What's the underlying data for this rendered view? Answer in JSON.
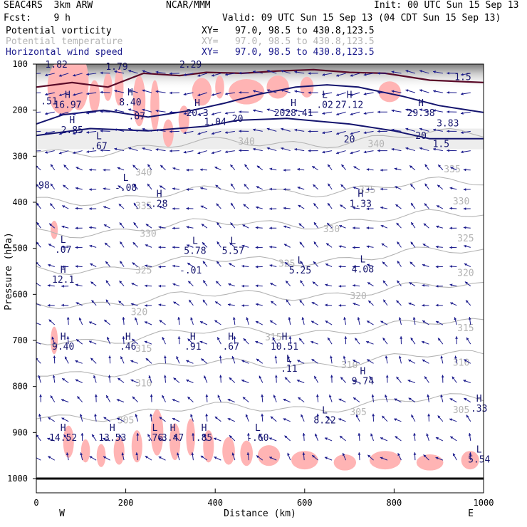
{
  "header": {
    "line1_left": "SEAC4RS  3km ARW",
    "line1_center": "NCAR/MMM",
    "line1_right": "Init: 00 UTC Sun 15 Sep 13",
    "line2_left": "Fcst:    9 h",
    "line2_right": "Valid: 09 UTC Sun 15 Sep 13 (04 CDT Sun 15 Sep 13)",
    "fields": [
      {
        "name": "Potential vorticity",
        "xy": "XY=   97.0, 98.5 to 430.8,123.5",
        "color": "#000000"
      },
      {
        "name": "Potential temperature",
        "xy": "XY=   97.0, 98.5 to 430.8,123.5",
        "color": "#b4b4b4"
      },
      {
        "name": "Horizontal wind speed",
        "xy": "XY=   97.0, 98.5 to 430.8,123.5",
        "color": "#1a1a8c"
      }
    ]
  },
  "chart_data": {
    "type": "cross-section",
    "xlabel": "Distance (km)",
    "ylabel": "Pressure (hPa)",
    "xlim": [
      0,
      1000
    ],
    "ylim": [
      1000,
      100
    ],
    "x_ticks": [
      "0",
      "200",
      "400",
      "600",
      "800",
      "1000"
    ],
    "y_ticks": [
      "100",
      "200",
      "300",
      "400",
      "500",
      "600",
      "700",
      "800",
      "900",
      "1000"
    ],
    "x_end_labels": {
      "left": "W",
      "right": "E"
    },
    "theta_contours": [
      {
        "label": "340",
        "p": 290
      },
      {
        "label": "335",
        "p": 395
      },
      {
        "label": "330",
        "p": 465
      },
      {
        "label": "325",
        "p": 545
      },
      {
        "label": "320",
        "p": 620
      },
      {
        "label": "315",
        "p": 700
      },
      {
        "label": "310",
        "p": 770
      },
      {
        "label": "305",
        "p": 865
      }
    ],
    "theta_labels": [
      {
        "text": "340",
        "x": 760,
        "p": 280
      },
      {
        "text": "340",
        "x": 240,
        "p": 342
      },
      {
        "text": "335",
        "x": 930,
        "p": 335
      },
      {
        "text": "335",
        "x": 740,
        "p": 380
      },
      {
        "text": "335",
        "x": 240,
        "p": 415
      },
      {
        "text": "330",
        "x": 950,
        "p": 405
      },
      {
        "text": "330",
        "x": 660,
        "p": 465
      },
      {
        "text": "330",
        "x": 250,
        "p": 475
      },
      {
        "text": "325",
        "x": 960,
        "p": 485
      },
      {
        "text": "325",
        "x": 560,
        "p": 540
      },
      {
        "text": "325",
        "x": 240,
        "p": 555
      },
      {
        "text": "320",
        "x": 960,
        "p": 560
      },
      {
        "text": "320",
        "x": 720,
        "p": 610
      },
      {
        "text": "320",
        "x": 230,
        "p": 645
      },
      {
        "text": "315",
        "x": 960,
        "p": 680
      },
      {
        "text": "315",
        "x": 530,
        "p": 700
      },
      {
        "text": "315",
        "x": 240,
        "p": 725
      },
      {
        "text": "310",
        "x": 950,
        "p": 755
      },
      {
        "text": "310",
        "x": 700,
        "p": 760
      },
      {
        "text": "310",
        "x": 240,
        "p": 800
      },
      {
        "text": "305",
        "x": 950,
        "p": 858
      },
      {
        "text": "305",
        "x": 720,
        "p": 862
      },
      {
        "text": "305",
        "x": 200,
        "p": 880
      },
      {
        "text": "340",
        "x": 470,
        "p": 275
      }
    ],
    "wind_speed_labels": [
      {
        "text": "20",
        "x": 450,
        "p": 225
      },
      {
        "text": "20",
        "x": 700,
        "p": 270
      },
      {
        "text": "20",
        "x": 860,
        "p": 262
      }
    ],
    "extrema": [
      {
        "mark": "H",
        "value": "16.97",
        "x": 70,
        "p": 195
      },
      {
        "mark": "H",
        "value": "2.85",
        "x": 80,
        "p": 250
      },
      {
        "mark": "L",
        "value": ".67",
        "x": 140,
        "p": 285
      },
      {
        "mark": "H",
        "value": "8.40",
        "x": 210,
        "p": 190
      },
      {
        "mark": "",
        "value": ".87",
        "x": 225,
        "p": 220
      },
      {
        "mark": "H",
        "value": "20.3",
        "x": 360,
        "p": 213
      },
      {
        "mark": "",
        "value": "1.04",
        "x": 400,
        "p": 232
      },
      {
        "mark": "H",
        "value": "2028.41",
        "x": 575,
        "p": 213
      },
      {
        "mark": "L",
        "value": ".02",
        "x": 645,
        "p": 195
      },
      {
        "mark": "H",
        "value": "27.12",
        "x": 700,
        "p": 195
      },
      {
        "mark": "H",
        "value": "29.38",
        "x": 860,
        "p": 213
      },
      {
        "mark": "",
        "value": "3.83",
        "x": 920,
        "p": 235
      },
      {
        "mark": "",
        "value": "1.5",
        "x": 905,
        "p": 280
      },
      {
        "mark": "L",
        "value": "-.08",
        "x": 200,
        "p": 375
      },
      {
        "mark": "H",
        "value": ".28",
        "x": 275,
        "p": 410
      },
      {
        "mark": "H",
        "value": "1.33",
        "x": 725,
        "p": 410
      },
      {
        "mark": "L",
        "value": ".07",
        "x": 60,
        "p": 510
      },
      {
        "mark": "L",
        "value": "5.78",
        "x": 355,
        "p": 512
      },
      {
        "mark": "L",
        "value": "5.57",
        "x": 440,
        "p": 512
      },
      {
        "mark": "",
        "value": "-.01",
        "x": 345,
        "p": 555
      },
      {
        "mark": "L",
        "value": "5.25",
        "x": 590,
        "p": 555
      },
      {
        "mark": "L",
        "value": "4.08",
        "x": 730,
        "p": 552
      },
      {
        "mark": "H",
        "value": "12.1",
        "x": 60,
        "p": 575
      },
      {
        "mark": "H",
        "value": "9.40",
        "x": 60,
        "p": 720
      },
      {
        "mark": "H",
        "value": ".46",
        "x": 205,
        "p": 720
      },
      {
        "mark": "H",
        "value": ".91",
        "x": 350,
        "p": 720
      },
      {
        "mark": "H",
        "value": ".67",
        "x": 435,
        "p": 720
      },
      {
        "mark": "H",
        "value": "10.51",
        "x": 555,
        "p": 720
      },
      {
        "mark": "L",
        "value": ".11",
        "x": 565,
        "p": 768
      },
      {
        "mark": "H",
        "value": "9.74",
        "x": 730,
        "p": 795
      },
      {
        "mark": "L",
        "value": "8.22",
        "x": 645,
        "p": 880
      },
      {
        "mark": "H",
        "value": ".33",
        "x": 990,
        "p": 855
      },
      {
        "mark": "H",
        "value": "14.52",
        "x": 60,
        "p": 918
      },
      {
        "mark": "H",
        "value": "13.53",
        "x": 170,
        "p": 918
      },
      {
        "mark": "L",
        "value": ".76",
        "x": 265,
        "p": 918
      },
      {
        "mark": "H",
        "value": "3.47",
        "x": 305,
        "p": 918
      },
      {
        "mark": "H",
        "value": ".85",
        "x": 375,
        "p": 918
      },
      {
        "mark": "L",
        "value": "-.60",
        "x": 495,
        "p": 918
      },
      {
        "mark": "L",
        "value": "5.54",
        "x": 990,
        "p": 965
      }
    ],
    "edge_values": [
      {
        "text": ".51",
        "x": 10,
        "p": 187
      },
      {
        "text": "98",
        "x": 5,
        "p": 370
      },
      {
        "text": "1.82",
        "x": 20,
        "p": 108
      },
      {
        "text": "1.79",
        "x": 155,
        "p": 112
      },
      {
        "text": "2.29",
        "x": 320,
        "p": 108
      },
      {
        "text": "1.5",
        "x": 935,
        "p": 135
      }
    ],
    "colors": {
      "pv_shade": "#ffb4b4",
      "theta": "#b4b4b4",
      "wind": "#1a1a8c",
      "wind_contour": "#14146e",
      "pv_contour": "#5a0a28",
      "stratosphere": "#787878"
    }
  }
}
